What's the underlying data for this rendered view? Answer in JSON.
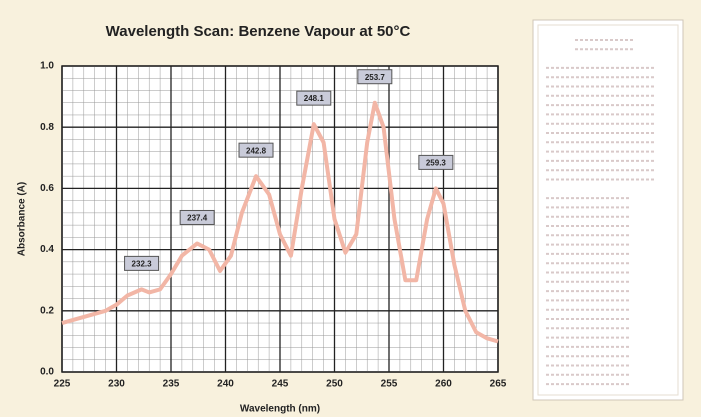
{
  "chart_data": {
    "type": "line",
    "title": "Wavelength Scan:  Benzene Vapour at 50°C",
    "x_label": "Wavelength (nm)",
    "y_label": "Absorbance (A)",
    "x": [
      225,
      227,
      229,
      230,
      231,
      232.3,
      233,
      234,
      235,
      236,
      237.4,
      238.5,
      239.5,
      240.5,
      241.5,
      242.8,
      244,
      245,
      246,
      247,
      248.1,
      249,
      250,
      251,
      252,
      253,
      253.7,
      254.5,
      255.5,
      256.5,
      257.5,
      258.5,
      259.3,
      260,
      261,
      262,
      263,
      264,
      265
    ],
    "series": [
      {
        "color": "#f2b6a6",
        "values": [
          0.16,
          0.18,
          0.2,
          0.22,
          0.25,
          0.27,
          0.26,
          0.27,
          0.32,
          0.38,
          0.42,
          0.4,
          0.33,
          0.38,
          0.52,
          0.64,
          0.58,
          0.45,
          0.38,
          0.6,
          0.81,
          0.75,
          0.5,
          0.39,
          0.45,
          0.75,
          0.88,
          0.8,
          0.5,
          0.3,
          0.3,
          0.5,
          0.6,
          0.55,
          0.35,
          0.2,
          0.13,
          0.11,
          0.1
        ]
      }
    ],
    "annotations": [
      {
        "text": "232.3",
        "x": 232.3,
        "y": 0.27
      },
      {
        "text": "237.4",
        "x": 237.4,
        "y": 0.42
      },
      {
        "text": "242.8",
        "x": 242.8,
        "y": 0.64
      },
      {
        "text": "248.1",
        "x": 248.1,
        "y": 0.81
      },
      {
        "text": "253.7",
        "x": 253.7,
        "y": 0.88
      },
      {
        "text": "259.3",
        "x": 259.3,
        "y": 0.6
      }
    ],
    "xlim": [
      225,
      265
    ],
    "xticks": [
      225,
      230,
      235,
      240,
      245,
      250,
      255,
      260,
      265
    ],
    "ylim": [
      0,
      1
    ],
    "yticks": [
      {
        "value": 0,
        "label": "0.0"
      },
      0.2,
      0.4,
      0.6,
      0.8,
      {
        "value": 1,
        "label": "1.0"
      }
    ],
    "grid": true
  }
}
